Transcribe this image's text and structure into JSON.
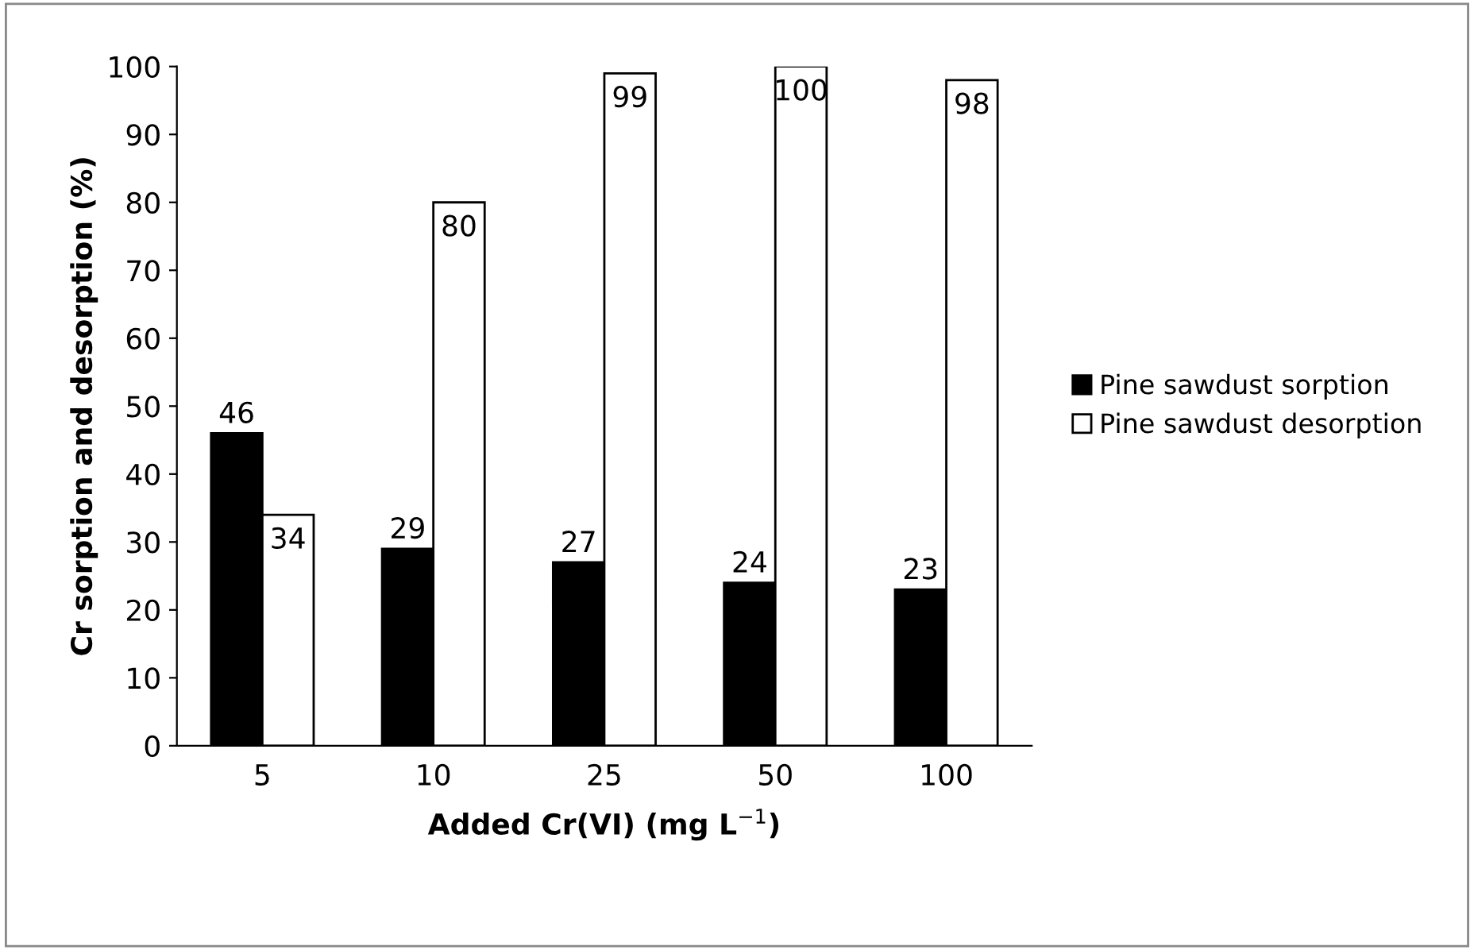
{
  "chart_data": {
    "type": "bar",
    "xlabel": "Added Cr(VI) (mg L$^{−1}$)",
    "ylabel": "Cr sorption and desorption (%)",
    "categories": [
      "5",
      "10",
      "25",
      "50",
      "100"
    ],
    "series": [
      {
        "name": "Pine sawdust sorption",
        "color": "#000000",
        "values": [
          46,
          29,
          27,
          24,
          23
        ]
      },
      {
        "name": "Pine sawdust desorption",
        "color": "#ffffff",
        "values": [
          34,
          80,
          99,
          100,
          98
        ]
      }
    ],
    "ylim": [
      0,
      100
    ],
    "yticks": [
      0,
      10,
      20,
      30,
      40,
      50,
      60,
      70,
      80,
      90,
      100
    ],
    "data_labels": true,
    "grid": false,
    "legend": "right"
  }
}
